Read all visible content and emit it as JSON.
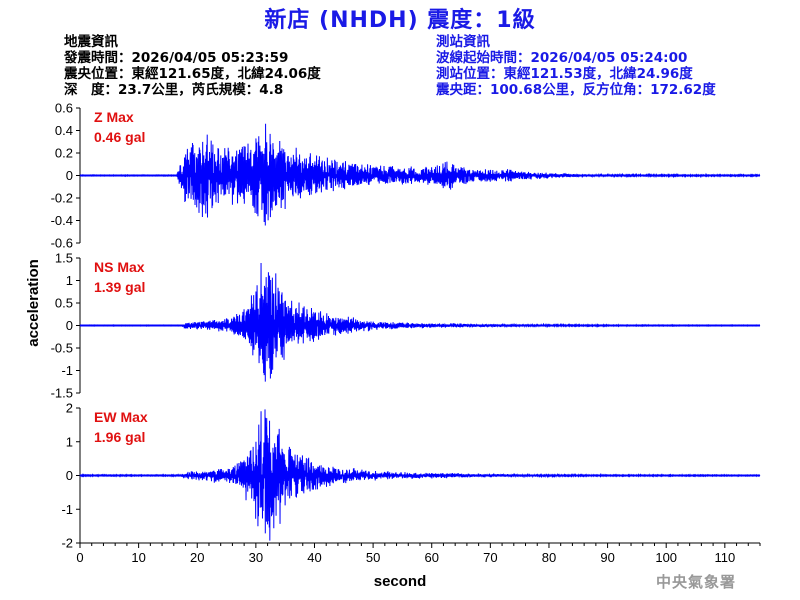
{
  "header": {
    "title": "新店 (NHDH) 震度：1級"
  },
  "earthquake_info": {
    "heading": "地震資訊",
    "origin_time": "發震時間：2026/04/05 05:23:59",
    "epicenter": "震央位置：東經121.65度，北緯24.06度",
    "depth_magnitude": "深　度：23.7公里，芮氏規模：4.8"
  },
  "station_info": {
    "heading": "測站資訊",
    "wave_start": "波線起始時間：2026/04/05 05:24:00",
    "location": "測站位置：東經121.53度，北緯24.96度",
    "distance": "震央距：100.68公里，反方位角：172.62度"
  },
  "footer": {
    "agency": "中央氣象署"
  },
  "colors": {
    "trace": "#0000ff",
    "title": "#1a1ae6",
    "max_label": "#e01010",
    "agency": "#999999"
  },
  "chart_data": {
    "type": "line",
    "xlabel": "second",
    "ylabel": "acceleration",
    "xlim": [
      0,
      116
    ],
    "x_ticks": [
      0,
      10,
      20,
      30,
      40,
      50,
      60,
      70,
      80,
      90,
      100,
      110
    ],
    "panels": [
      {
        "name": "Z",
        "max_label": "Z Max",
        "max_value": "0.46 gal",
        "peak": 0.46,
        "ylim": [
          -0.6,
          0.6
        ],
        "y_ticks": [
          "0.6",
          "0.4",
          "0.2",
          "0",
          "-0.2",
          "-0.4",
          "-0.6"
        ],
        "envelope": [
          [
            0,
            0.003
          ],
          [
            16.5,
            0.003
          ],
          [
            17.5,
            0.15
          ],
          [
            19,
            0.25
          ],
          [
            21,
            0.3
          ],
          [
            23,
            0.22
          ],
          [
            25,
            0.18
          ],
          [
            27,
            0.2
          ],
          [
            29,
            0.24
          ],
          [
            31,
            0.3
          ],
          [
            32,
            0.4
          ],
          [
            33,
            0.3
          ],
          [
            35,
            0.22
          ],
          [
            38,
            0.16
          ],
          [
            42,
            0.12
          ],
          [
            46,
            0.09
          ],
          [
            50,
            0.07
          ],
          [
            55,
            0.06
          ],
          [
            58,
            0.055
          ],
          [
            61,
            0.07
          ],
          [
            63,
            0.1
          ],
          [
            65,
            0.06
          ],
          [
            68,
            0.05
          ],
          [
            72,
            0.045
          ],
          [
            76,
            0.03
          ],
          [
            80,
            0.02
          ],
          [
            85,
            0.01
          ],
          [
            90,
            0.006
          ],
          [
            116,
            0.004
          ]
        ]
      },
      {
        "name": "NS",
        "max_label": "NS Max",
        "max_value": "1.39 gal",
        "peak": 1.39,
        "ylim": [
          -1.5,
          1.5
        ],
        "y_ticks": [
          "1.5",
          "1",
          "0.5",
          "0",
          "-0.5",
          "-1",
          "-1.5"
        ],
        "envelope": [
          [
            0,
            0.005
          ],
          [
            17,
            0.005
          ],
          [
            18,
            0.05
          ],
          [
            22,
            0.08
          ],
          [
            25,
            0.1
          ],
          [
            27,
            0.18
          ],
          [
            29,
            0.35
          ],
          [
            31,
            0.9
          ],
          [
            32,
            1.1
          ],
          [
            33,
            0.8
          ],
          [
            35,
            0.5
          ],
          [
            37,
            0.35
          ],
          [
            40,
            0.25
          ],
          [
            44,
            0.15
          ],
          [
            48,
            0.1
          ],
          [
            52,
            0.06
          ],
          [
            58,
            0.04
          ],
          [
            65,
            0.03
          ],
          [
            72,
            0.02
          ],
          [
            80,
            0.012
          ],
          [
            90,
            0.008
          ],
          [
            116,
            0.005
          ]
        ]
      },
      {
        "name": "EW",
        "max_label": "EW Max",
        "max_value": "1.96 gal",
        "peak": 1.96,
        "ylim": [
          -2,
          2
        ],
        "y_ticks": [
          "2",
          "1",
          "0",
          "-1",
          "-2"
        ],
        "envelope": [
          [
            0,
            0.01
          ],
          [
            17,
            0.01
          ],
          [
            18,
            0.06
          ],
          [
            22,
            0.1
          ],
          [
            26,
            0.16
          ],
          [
            28,
            0.3
          ],
          [
            30,
            0.7
          ],
          [
            31,
            1.1
          ],
          [
            32,
            1.5
          ],
          [
            33,
            1.0
          ],
          [
            35,
            0.6
          ],
          [
            37,
            0.4
          ],
          [
            40,
            0.25
          ],
          [
            44,
            0.15
          ],
          [
            48,
            0.1
          ],
          [
            52,
            0.07
          ],
          [
            58,
            0.05
          ],
          [
            65,
            0.035
          ],
          [
            72,
            0.025
          ],
          [
            80,
            0.015
          ],
          [
            90,
            0.01
          ],
          [
            116,
            0.008
          ]
        ]
      }
    ]
  }
}
